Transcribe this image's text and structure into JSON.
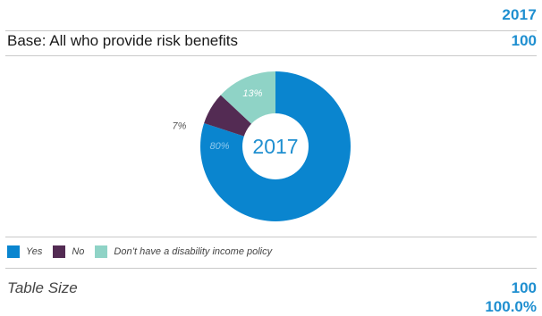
{
  "header": {
    "year": "2017"
  },
  "base": {
    "label": "Base: All who provide risk benefits",
    "value": "100"
  },
  "chart_data": {
    "type": "pie",
    "style": "donut",
    "center_label": "2017",
    "slices": [
      {
        "label": "Yes",
        "value": 80,
        "display": "80%",
        "color": "#0a85cf",
        "text_color": "#8cc8ee"
      },
      {
        "label": "No",
        "value": 7,
        "display": "7%",
        "color": "#532b53",
        "text_color": "#555555"
      },
      {
        "label": "Don't have a disability income policy",
        "value": 13,
        "display": "13%",
        "color": "#8fd3c6",
        "text_color": "#ffffff"
      }
    ],
    "legend_position": "bottom-left"
  },
  "legend": {
    "items": [
      {
        "label": "Yes",
        "color": "#0a85cf"
      },
      {
        "label": "No",
        "color": "#532b53"
      },
      {
        "label": "Don’t have a disability income policy",
        "color": "#8fd3c6"
      }
    ]
  },
  "footer": {
    "table_size_label": "Table Size",
    "table_size_value": "100",
    "table_size_percent": "100.0%"
  },
  "colors": {
    "accent": "#1f8fd0",
    "rule": "#c9c9c9"
  }
}
